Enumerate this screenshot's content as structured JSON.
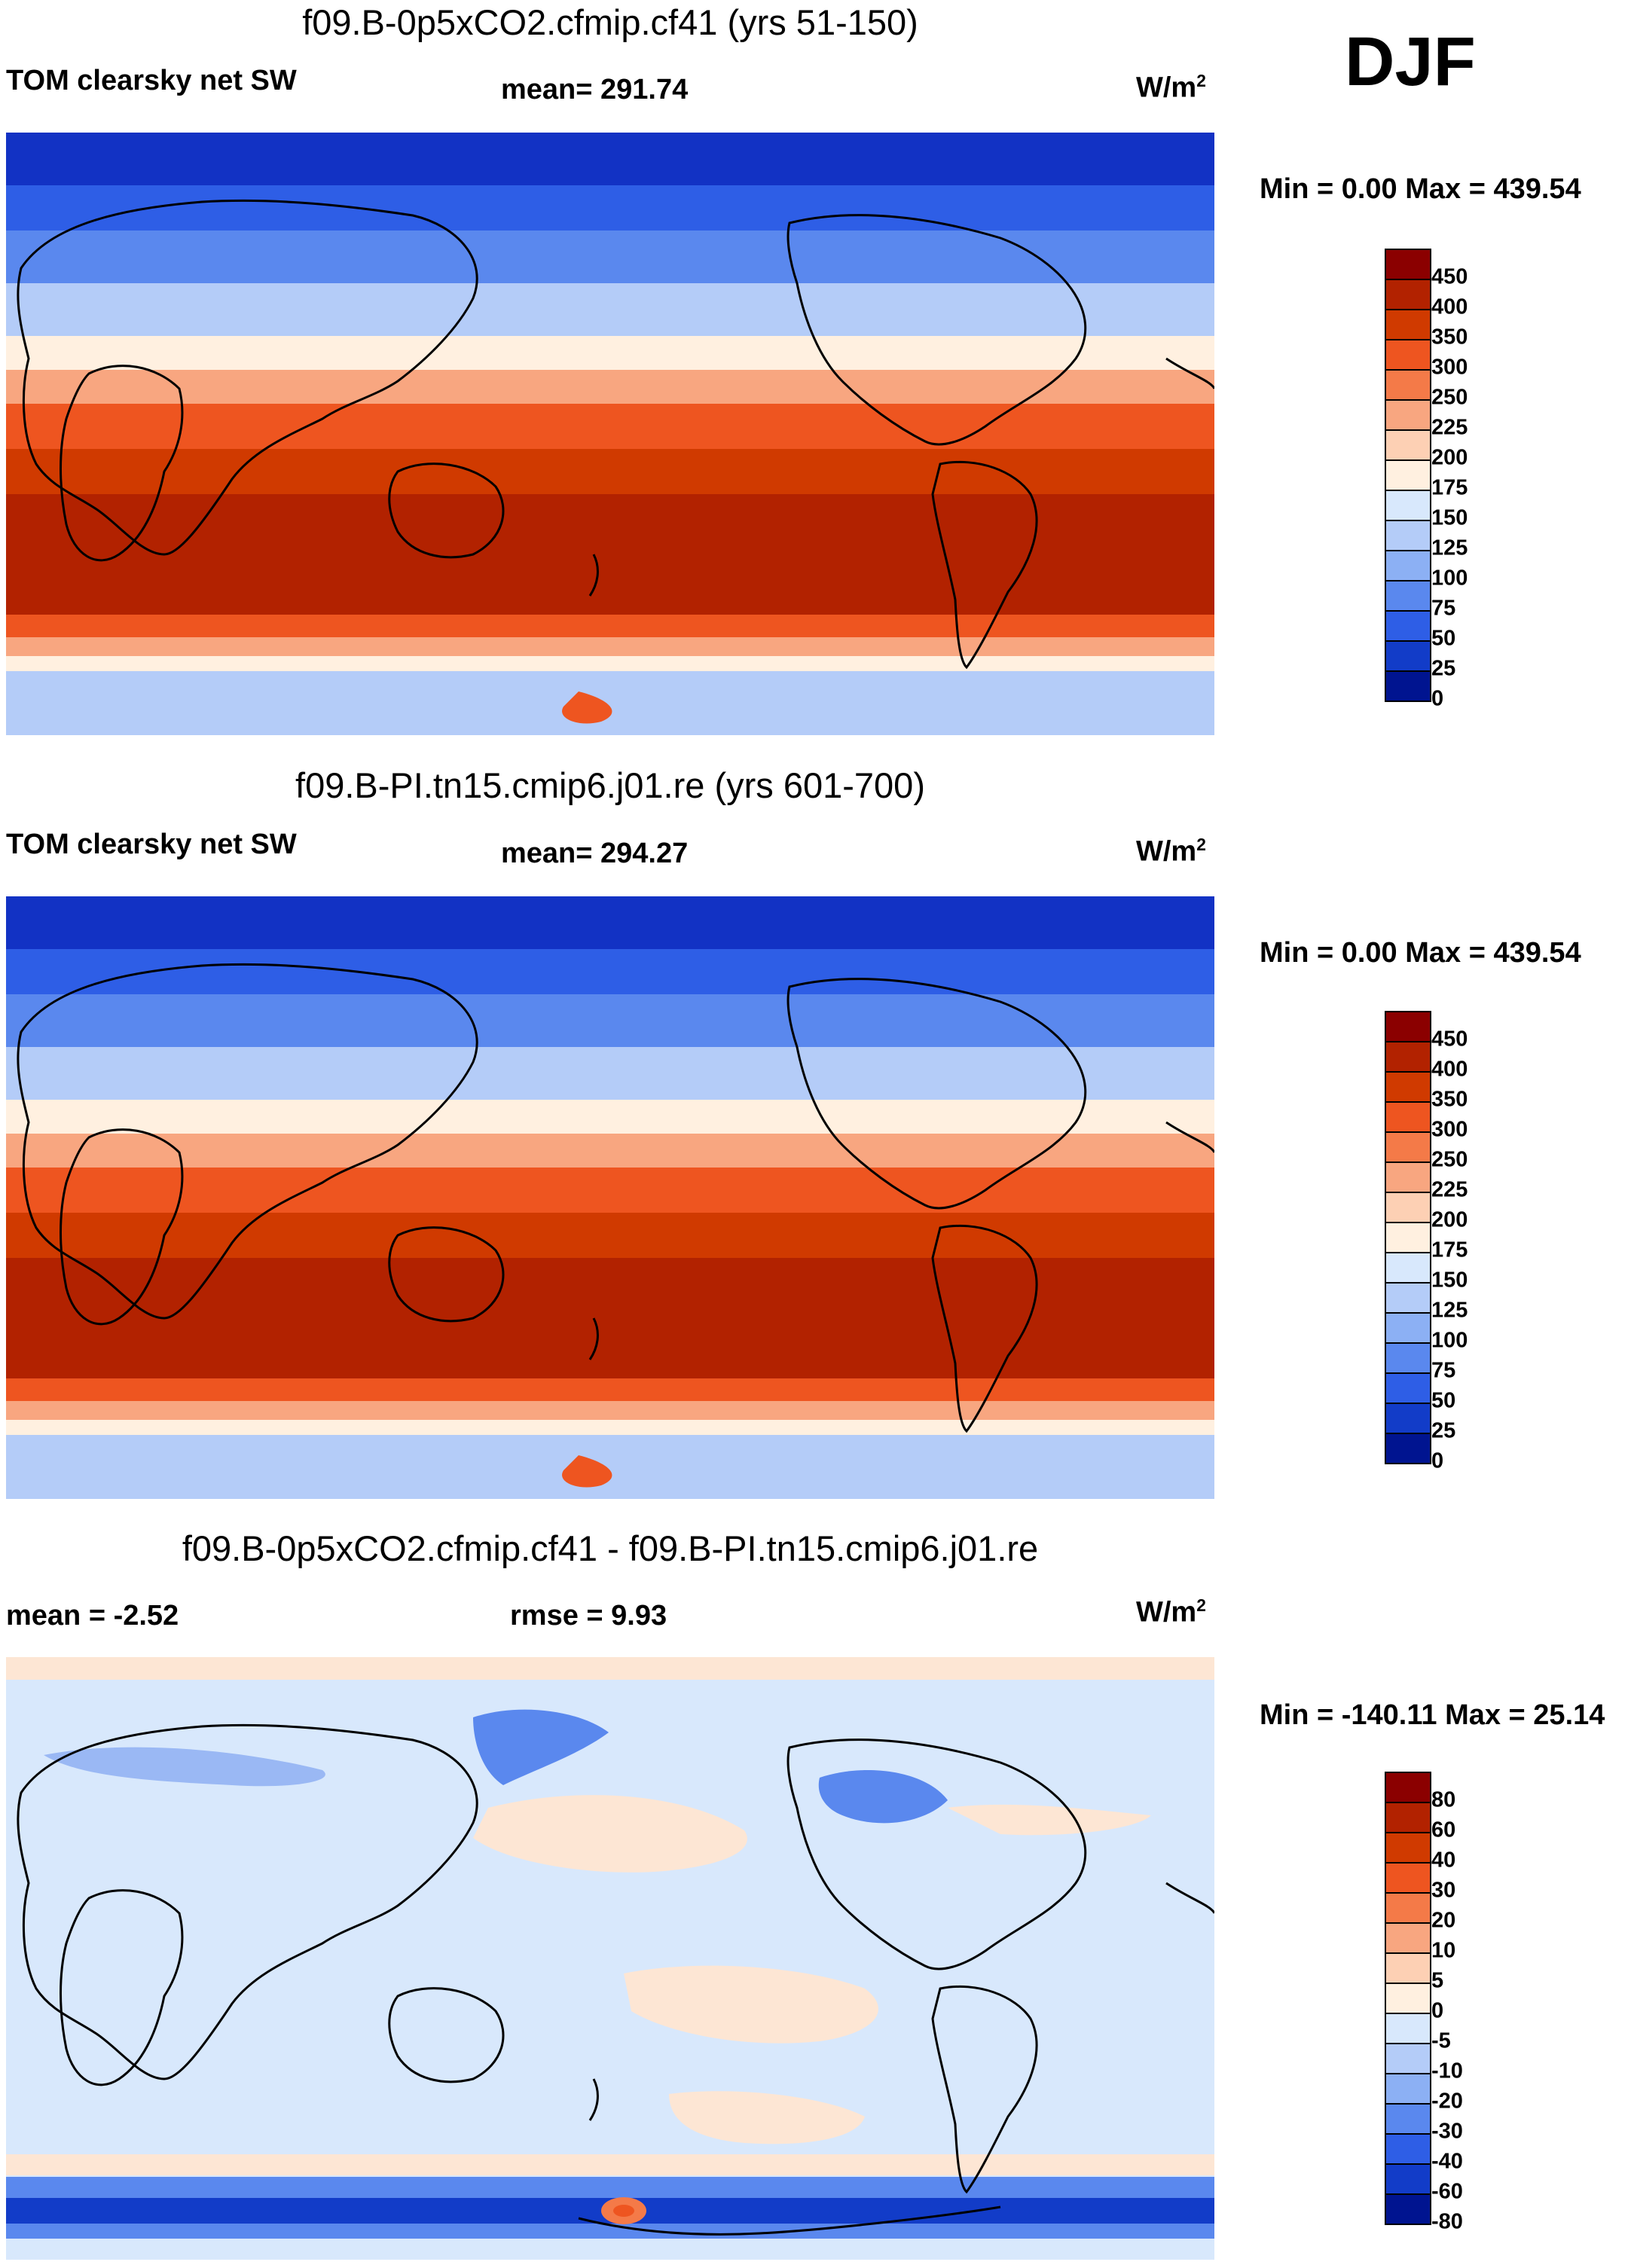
{
  "season": "DJF",
  "panels": [
    {
      "title": "f09.B-0p5xCO2.cfmip.cf41 (yrs 51-150)",
      "variable": "TOM clearsky net SW",
      "stat1": "mean= 291.74",
      "units": "W/m",
      "units_sup": "2",
      "minmax": "Min =   0.00 Max = 439.54",
      "colorbar": {
        "labels": [
          "450",
          "400",
          "350",
          "300",
          "250",
          "225",
          "200",
          "175",
          "150",
          "125",
          "100",
          "75",
          "50",
          "25",
          "0"
        ],
        "colors": [
          "#8b0000",
          "#b22200",
          "#d03a00",
          "#ee5520",
          "#f47a48",
          "#f8a680",
          "#fdd0b4",
          "#fff0e0",
          "#d8e8fc",
          "#b4ccf8",
          "#8cb0f4",
          "#5a88ee",
          "#2e5ee6",
          "#123cc8",
          "#001490"
        ]
      }
    },
    {
      "title": "f09.B-PI.tn15.cmip6.j01.re (yrs 601-700)",
      "variable": "TOM clearsky net SW",
      "stat1": "mean= 294.27",
      "units": "W/m",
      "units_sup": "2",
      "minmax": "Min =   0.00 Max = 439.54",
      "colorbar": {
        "labels": [
          "450",
          "400",
          "350",
          "300",
          "250",
          "225",
          "200",
          "175",
          "150",
          "125",
          "100",
          "75",
          "50",
          "25",
          "0"
        ],
        "colors": [
          "#8b0000",
          "#b22200",
          "#d03a00",
          "#ee5520",
          "#f47a48",
          "#f8a680",
          "#fdd0b4",
          "#fff0e0",
          "#d8e8fc",
          "#b4ccf8",
          "#8cb0f4",
          "#5a88ee",
          "#2e5ee6",
          "#123cc8",
          "#001490"
        ]
      }
    },
    {
      "title": "f09.B-0p5xCO2.cfmip.cf41 - f09.B-PI.tn15.cmip6.j01.re",
      "stat1": "mean =  -2.52",
      "stat2": "rmse =   9.93",
      "units": "W/m",
      "units_sup": "2",
      "minmax": "Min = -140.11 Max =  25.14",
      "colorbar": {
        "labels": [
          "80",
          "60",
          "40",
          "30",
          "20",
          "10",
          "5",
          "0",
          "-5",
          "-10",
          "-20",
          "-30",
          "-40",
          "-60",
          "-80"
        ],
        "colors": [
          "#8b0000",
          "#b22200",
          "#d03a00",
          "#ee5520",
          "#f47a48",
          "#f8a680",
          "#fdd0b4",
          "#fff0e0",
          "#d8e8fc",
          "#b4ccf8",
          "#8cb0f4",
          "#5a88ee",
          "#2e5ee6",
          "#123cc8",
          "#001490"
        ]
      }
    }
  ],
  "map_colors": {
    "polar_dark": "#1232c4",
    "mid_blue": "#3a68ea",
    "light_blue": "#9ab8f4",
    "pale_blue": "#d8e8fc",
    "cream": "#fff0e0",
    "peach": "#f8a680",
    "orange": "#ee5520",
    "red": "#d03a00",
    "deep_red": "#b22200",
    "diff_bg": "#d8e8fc",
    "diff_pos": "#fde6d4",
    "land_outline": "#000000"
  }
}
